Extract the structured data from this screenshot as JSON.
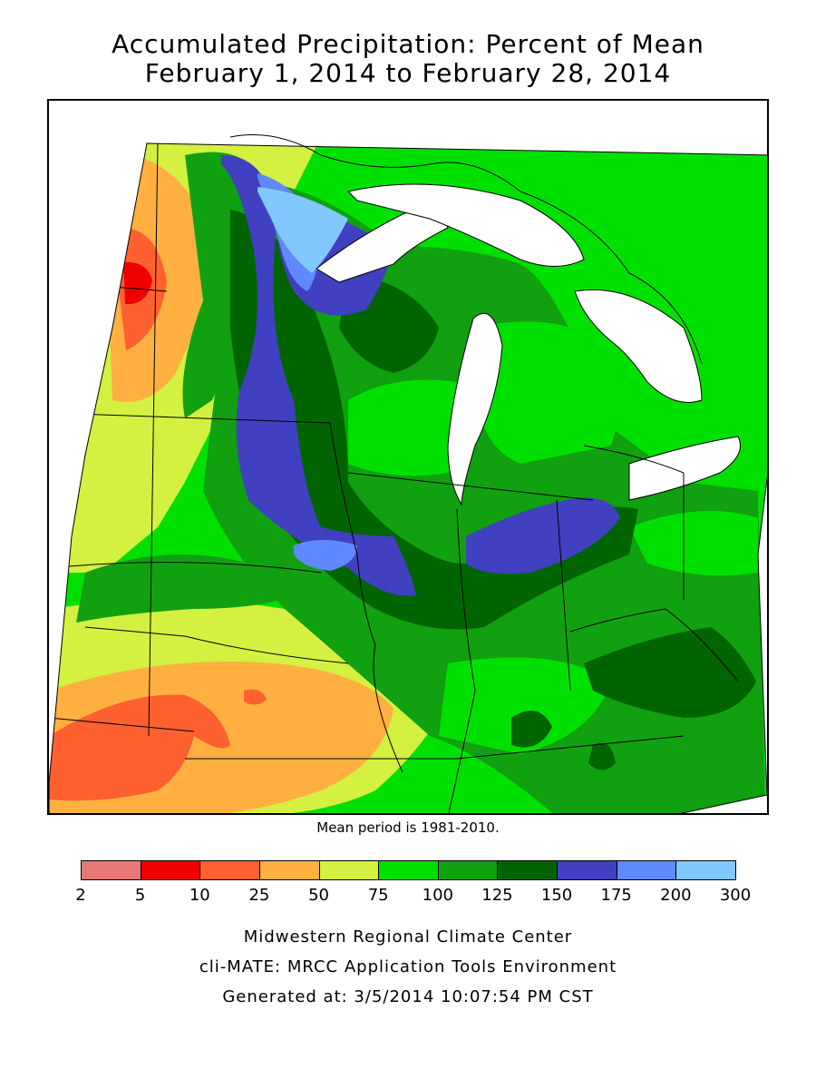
{
  "title": {
    "line1": "Accumulated Precipitation: Percent of Mean",
    "line2": "February 1, 2014 to February 28, 2014"
  },
  "mean_period_note": "Mean period is 1981-2010.",
  "legend": {
    "colors": [
      "#e67878",
      "#ee0000",
      "#ff6030",
      "#ffb040",
      "#d4f040",
      "#00e000",
      "#10a010",
      "#006400",
      "#4040c0",
      "#6088ff",
      "#80c8ff"
    ],
    "ticks": [
      "2",
      "5",
      "10",
      "25",
      "50",
      "75",
      "100",
      "125",
      "150",
      "175",
      "200",
      "300"
    ]
  },
  "footer": {
    "line1": "Midwestern Regional Climate Center",
    "line2": "cli-MATE: MRCC Application Tools Environment",
    "line3": "Generated at: 3/5/2014 10:07:54 PM CST"
  },
  "map": {
    "variable": "precipitation percent of mean",
    "palette": {
      "c25": "#ff6030",
      "c50": "#ffb040",
      "c75": "#d4f040",
      "c100": "#00e000",
      "c125": "#10a010",
      "c150": "#006400",
      "c175": "#4040c0",
      "c200": "#6088ff",
      "c300": "#80c8ff",
      "c10": "#ee0000",
      "water": "#ffffff"
    }
  }
}
